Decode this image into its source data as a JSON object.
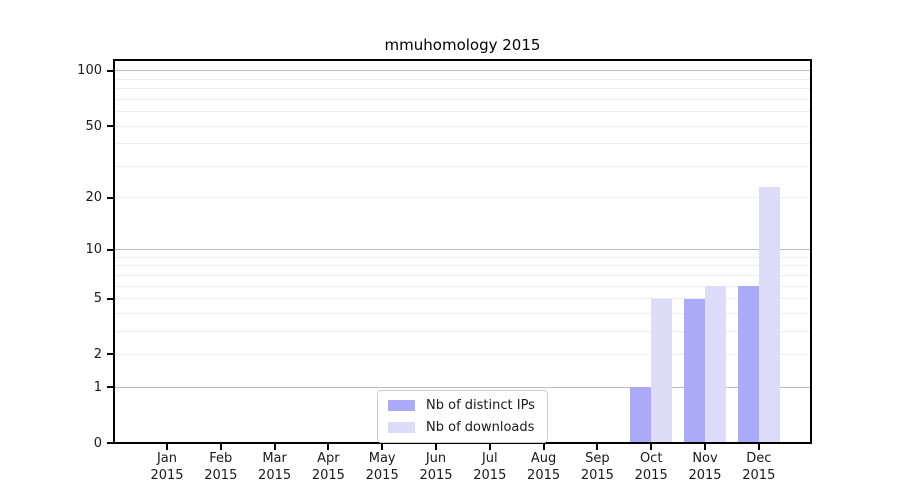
{
  "title": "mmuhomology 2015",
  "chart_data": {
    "type": "bar",
    "title": "mmuhomology 2015",
    "x_months": [
      "Jan",
      "Feb",
      "Mar",
      "Apr",
      "May",
      "Jun",
      "Jul",
      "Aug",
      "Sep",
      "Oct",
      "Nov",
      "Dec"
    ],
    "x_year": "2015",
    "categories": [
      "Jan 2015",
      "Feb 2015",
      "Mar 2015",
      "Apr 2015",
      "May 2015",
      "Jun 2015",
      "Jul 2015",
      "Aug 2015",
      "Sep 2015",
      "Oct 2015",
      "Nov 2015",
      "Dec 2015"
    ],
    "series": [
      {
        "name": "Nb of distinct IPs",
        "color": "#aaaaf8",
        "values": [
          0,
          0,
          0,
          0,
          0,
          0,
          0,
          0,
          0,
          1,
          5,
          6
        ]
      },
      {
        "name": "Nb of downloads",
        "color": "#dcdcf9",
        "values": [
          0,
          0,
          0,
          0,
          0,
          0,
          0,
          0,
          0,
          5,
          6,
          23
        ]
      }
    ],
    "y_scale": "log10(1+v)",
    "ylim": [
      0,
      115
    ],
    "y_tick_labels": [
      0,
      1,
      2,
      5,
      10,
      20,
      50,
      100
    ],
    "gridlines_major": [
      1,
      10,
      100
    ],
    "gridlines_minor": [
      2,
      3,
      4,
      5,
      6,
      7,
      8,
      9,
      20,
      30,
      40,
      50,
      60,
      70,
      80,
      90
    ],
    "grid": true,
    "legend_position": "lower center",
    "colors": {
      "bar_distinct_ips": "#aaaaf8",
      "bar_downloads": "#dcdcf9",
      "major_grid": "#bdbdbd",
      "minor_grid": "#ededed",
      "axis": "#000000",
      "background": "#ffffff"
    }
  }
}
